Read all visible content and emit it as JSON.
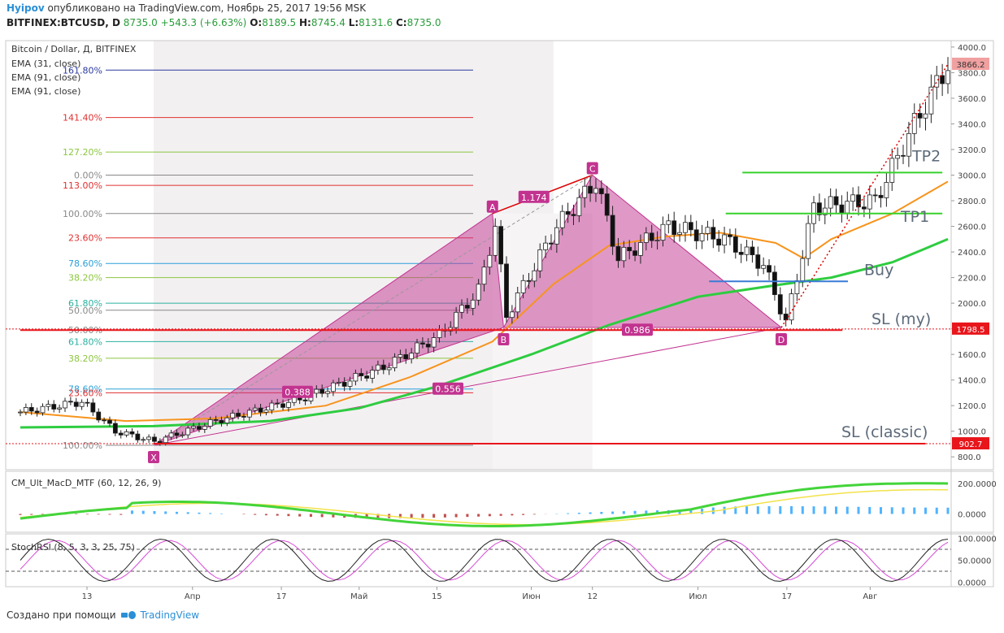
{
  "header": {
    "author": "Hyipov",
    "published": "опубликовано на TradingView.com, Ноябрь 25, 2017 19:56 MSK",
    "symbol": "BITFINEX:BTCUSD, D",
    "last": "8735.0",
    "change": "+543.3 (+6.63%)",
    "o_label": "O:",
    "o_value": "8189.5",
    "h_label": "H:",
    "h_value": "8745.4",
    "l_label": "L:",
    "l_value": "8131.6",
    "c_label": "C:",
    "c_value": "8735.0"
  },
  "footer": {
    "created_with": "Создано при помощи",
    "brand": "TradingView"
  },
  "colors": {
    "ema31": "#f7941d",
    "ema91": "#2ecc40",
    "pattern": "#c2338f",
    "sl": "#e8151b",
    "buy": "#3a7bd5",
    "tp": "#37d12b"
  },
  "chart_data": [
    {
      "type": "candlestick",
      "title": "Bitcoin / Dollar, Д, BITFINEX",
      "indicators": [
        "EMA (31, close)",
        "EMA (91, close)",
        "EMA (91, close)"
      ],
      "y_ticks": [
        800,
        1000,
        1200,
        1400,
        1600,
        1800,
        2000,
        2200,
        2400,
        2600,
        2800,
        3000,
        3200,
        3400,
        3600,
        3800,
        4000
      ],
      "y_tick_labels": [
        "800.0",
        "1000.0",
        "1200.0",
        "1400.0",
        "1600.0",
        "1800.0",
        "2000.0",
        "2200.0",
        "2400.0",
        "2600.0",
        "2800.0",
        "3000.0",
        "3200.0",
        "3400.0",
        "3600.0",
        "3800.0",
        "4000.0"
      ],
      "ylim": [
        700,
        4050
      ],
      "x_ticks": [
        "13",
        "Апр",
        "17",
        "Май",
        "15",
        "Июн",
        "12",
        "Июл",
        "17",
        "Авг"
      ],
      "price_labels": [
        {
          "value": 3866.2,
          "text": "3866.2",
          "color": "#f0a0a0"
        },
        {
          "value": 1798.5,
          "text": "1798.5",
          "color": "#e8151b"
        },
        {
          "value": 902.7,
          "text": "902.7",
          "color": "#e8151b"
        }
      ],
      "harmonic_points": [
        {
          "name": "X",
          "date": "2017-03-25",
          "price": 890
        },
        {
          "name": "A",
          "date": "2017-05-25",
          "price": 2700
        },
        {
          "name": "B",
          "date": "2017-05-27",
          "price": 1810
        },
        {
          "name": "C",
          "date": "2017-06-12",
          "price": 3000
        },
        {
          "name": "D",
          "date": "2017-07-16",
          "price": 1810
        }
      ],
      "pattern_ratios": [
        "1.174",
        "0.388",
        "0.556",
        "0.986"
      ],
      "fib_levels": [
        {
          "label": "161.80%",
          "price": 3820,
          "color": "#2b3a9e"
        },
        {
          "label": "141.40%",
          "price": 3450,
          "color": "#e03030"
        },
        {
          "label": "127.20%",
          "price": 3180,
          "color": "#8cc63f"
        },
        {
          "label": "0.00%",
          "price": 3000,
          "color": "#888888"
        },
        {
          "label": "113.00%",
          "price": 2920,
          "color": "#e03030"
        },
        {
          "label": "100.00%",
          "price": 2700,
          "color": "#888888"
        },
        {
          "label": "23.60%",
          "price": 2510,
          "color": "#e03030"
        },
        {
          "label": "78.60%",
          "price": 2310,
          "color": "#2b9fd6"
        },
        {
          "label": "38.20%",
          "price": 2200,
          "color": "#8cc63f"
        },
        {
          "label": "61.80%",
          "price": 2000,
          "color": "#2bb0a0"
        },
        {
          "label": "50.00%",
          "price": 1945,
          "color": "#888888"
        },
        {
          "label": "50.00%",
          "price": 1790,
          "color": "#888888"
        },
        {
          "label": "61.80%",
          "price": 1700,
          "color": "#2bb0a0"
        },
        {
          "label": "38.20%",
          "price": 1570,
          "color": "#8cc63f"
        },
        {
          "label": "78.60%",
          "price": 1330,
          "color": "#2b9fd6"
        },
        {
          "label": "23.60%",
          "price": 1300,
          "color": "#e03030"
        },
        {
          "label": "100.00%",
          "price": 890,
          "color": "#888888"
        }
      ],
      "annotations": [
        {
          "text": "TP2",
          "price": 3020
        },
        {
          "text": "TP1",
          "price": 2700
        },
        {
          "text": "Buy",
          "price": 2170
        },
        {
          "text": "SL (my)",
          "price": 1798.5
        },
        {
          "text": "SL (classic)",
          "price": 902.7
        }
      ],
      "ema31": [
        [
          "2017-03-01",
          1150
        ],
        [
          "2017-03-20",
          1080
        ],
        [
          "2017-04-05",
          1100
        ],
        [
          "2017-04-25",
          1200
        ],
        [
          "2017-05-10",
          1420
        ],
        [
          "2017-05-25",
          1700
        ],
        [
          "2017-06-05",
          2150
        ],
        [
          "2017-06-15",
          2450
        ],
        [
          "2017-06-25",
          2520
        ],
        [
          "2017-07-05",
          2550
        ],
        [
          "2017-07-15",
          2470
        ],
        [
          "2017-07-20",
          2350
        ],
        [
          "2017-07-25",
          2500
        ],
        [
          "2017-08-05",
          2700
        ],
        [
          "2017-08-15",
          2950
        ]
      ],
      "ema91": [
        [
          "2017-03-01",
          1030
        ],
        [
          "2017-03-25",
          1040
        ],
        [
          "2017-04-15",
          1080
        ],
        [
          "2017-05-01",
          1180
        ],
        [
          "2017-05-15",
          1350
        ],
        [
          "2017-06-01",
          1600
        ],
        [
          "2017-06-15",
          1830
        ],
        [
          "2017-07-01",
          2050
        ],
        [
          "2017-07-15",
          2140
        ],
        [
          "2017-07-25",
          2200
        ],
        [
          "2017-08-05",
          2320
        ],
        [
          "2017-08-15",
          2500
        ]
      ]
    },
    {
      "type": "line",
      "title": "CM_Ult_MacD_MTF (60, 12, 26, 9)",
      "y_ticks": [
        0,
        200
      ],
      "y_tick_labels": [
        "0.0000",
        "200.0000"
      ],
      "ylim": [
        -120,
        280
      ]
    },
    {
      "type": "line",
      "title": "StochRSI (8, 5, 3, 3, 25, 75)",
      "y_ticks": [
        0,
        50,
        100
      ],
      "y_tick_labels": [
        "0.0000",
        "50.0000",
        "100.0000"
      ],
      "ylim": [
        -10,
        110
      ]
    }
  ]
}
